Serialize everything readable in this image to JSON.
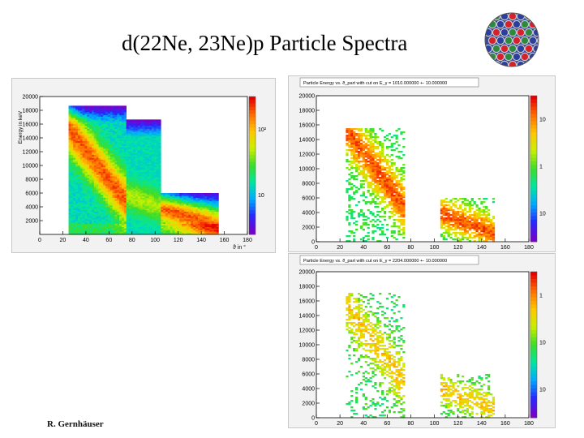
{
  "slide": {
    "title": "d(22Ne, 23Ne)p Particle Spectra",
    "author": "R. Gernhäuser"
  },
  "chart_data": [
    {
      "type": "heatmap",
      "title": "",
      "xlabel": "ϑ in °",
      "ylabel": "Energy in keV",
      "xlim": [
        0,
        180
      ],
      "ylim": [
        0,
        20000
      ],
      "xticks": [
        0,
        20,
        40,
        60,
        80,
        100,
        120,
        140,
        160,
        180
      ],
      "yticks": [
        2000,
        4000,
        6000,
        8000,
        10000,
        12000,
        14000,
        16000,
        18000,
        20000
      ],
      "zscale": "log",
      "colorbar_labels": [
        "10²",
        "10"
      ],
      "colorbar_values": [
        100,
        10
      ],
      "regions": [
        {
          "x": [
            25,
            75
          ],
          "y": [
            0,
            18500
          ]
        },
        {
          "x": [
            75,
            105
          ],
          "y": [
            0,
            16500
          ]
        },
        {
          "x": [
            105,
            155
          ],
          "y": [
            0,
            6000
          ]
        }
      ]
    },
    {
      "type": "heatmap",
      "title": "Particle Energy vs. ϑ_part with cut on E_γ = 1010.000000 +- 10.000000",
      "xlabel": "",
      "ylabel": "",
      "xlim": [
        0,
        180
      ],
      "ylim": [
        0,
        20000
      ],
      "xticks": [
        0,
        20,
        40,
        60,
        80,
        100,
        120,
        140,
        160,
        180
      ],
      "yticks": [
        0,
        2000,
        4000,
        6000,
        8000,
        10000,
        12000,
        14000,
        16000,
        18000,
        20000
      ],
      "zscale": "log",
      "colorbar_labels": [
        "10",
        "1",
        "10"
      ],
      "colorbar_values": [
        10,
        1,
        0.1
      ],
      "regions": [
        {
          "x": [
            25,
            75
          ],
          "y": [
            0,
            15500
          ]
        },
        {
          "x": [
            105,
            150
          ],
          "y": [
            0,
            6000
          ]
        }
      ]
    },
    {
      "type": "heatmap",
      "title": "Particle Energy vs. ϑ_part with cut on E_γ = 2204.000000 +- 10.000000",
      "xlabel": "",
      "ylabel": "",
      "xlim": [
        0,
        180
      ],
      "ylim": [
        0,
        20000
      ],
      "xticks": [
        0,
        20,
        40,
        60,
        80,
        100,
        120,
        140,
        160,
        180
      ],
      "yticks": [
        0,
        2000,
        4000,
        6000,
        8000,
        10000,
        12000,
        14000,
        16000,
        18000,
        20000
      ],
      "zscale": "log",
      "colorbar_labels": [
        "1",
        "10",
        "10"
      ],
      "colorbar_values": [
        1,
        0.1,
        0.01
      ],
      "regions": [
        {
          "x": [
            25,
            75
          ],
          "y": [
            0,
            17000
          ]
        },
        {
          "x": [
            105,
            150
          ],
          "y": [
            0,
            6000
          ]
        }
      ]
    }
  ]
}
